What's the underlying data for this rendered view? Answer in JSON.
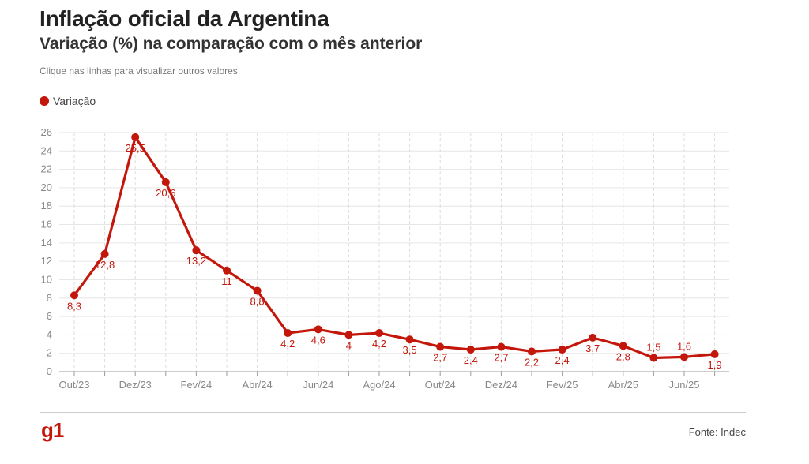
{
  "header": {
    "title": "Inflação oficial da Argentina",
    "subtitle": "Variação (%) na comparação com o mês anterior",
    "hint": "Clique nas linhas para visualizar outros valores"
  },
  "footer": {
    "logo": "g1",
    "source": "Fonte: Indec"
  },
  "colors": {
    "series": "#c4170c",
    "grid": "#e6e6e6",
    "axis": "#999999"
  },
  "chart_data": {
    "type": "line",
    "title": "Inflação oficial da Argentina",
    "subtitle": "Variação (%) na comparação com o mês anterior",
    "xlabel": "",
    "ylabel": "",
    "ylim": [
      0,
      26
    ],
    "yticks": [
      0,
      2,
      4,
      6,
      8,
      10,
      12,
      14,
      16,
      18,
      20,
      22,
      24,
      26
    ],
    "xtick_labels": [
      "Out/23",
      "Dez/23",
      "Fev/24",
      "Abr/24",
      "Jun/24",
      "Ago/24",
      "Out/24",
      "Dez/24",
      "Fev/25",
      "Abr/25",
      "Jun/25"
    ],
    "grid": true,
    "legend_position": "top-left",
    "categories": [
      "Out/23",
      "Nov/23",
      "Dez/23",
      "Jan/24",
      "Fev/24",
      "Mar/24",
      "Abr/24",
      "Mai/24",
      "Jun/24",
      "Jul/24",
      "Ago/24",
      "Set/24",
      "Out/24",
      "Nov/24",
      "Dez/24",
      "Jan/25",
      "Fev/25",
      "Mar/25",
      "Abr/25",
      "Mai/25",
      "Jun/25",
      "Jul/25"
    ],
    "series": [
      {
        "name": "Variação",
        "values": [
          8.3,
          12.8,
          25.5,
          20.6,
          13.2,
          11,
          8.8,
          4.2,
          4.6,
          4,
          4.2,
          3.5,
          2.7,
          2.4,
          2.7,
          2.2,
          2.4,
          3.7,
          2.8,
          1.5,
          1.6,
          1.9
        ],
        "labels": [
          "8,3",
          "12,8",
          "25,5",
          "20,6",
          "13,2",
          "11",
          "8,8",
          "4,2",
          "4,6",
          "4",
          "4,2",
          "3,5",
          "2,7",
          "2,4",
          "2,7",
          "2,2",
          "2,4",
          "3,7",
          "2,8",
          "1,5",
          "1,6",
          "1,9"
        ],
        "label_above": [
          false,
          false,
          false,
          false,
          false,
          false,
          false,
          false,
          false,
          false,
          false,
          false,
          false,
          false,
          false,
          false,
          false,
          false,
          false,
          true,
          true,
          false
        ]
      }
    ]
  }
}
